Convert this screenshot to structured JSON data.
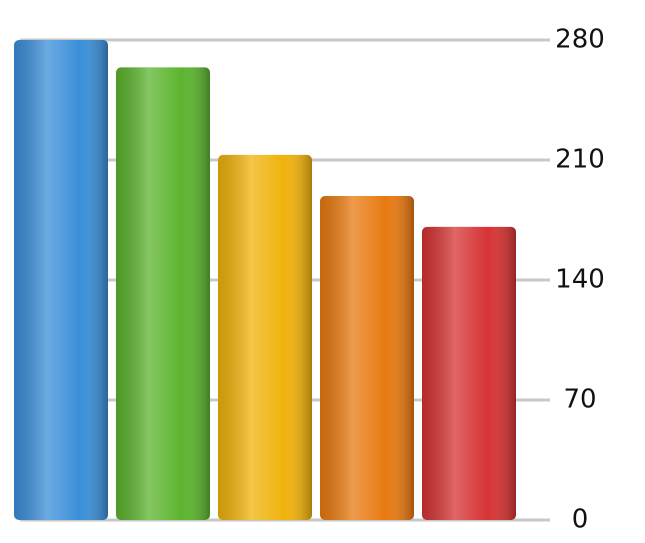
{
  "chart_data": {
    "type": "bar",
    "categories": [
      null,
      null,
      null,
      null,
      null
    ],
    "values": [
      280,
      264,
      213,
      189,
      171
    ],
    "colors": [
      "#3a8fd8",
      "#5cb42e",
      "#f0b30c",
      "#e87a10",
      "#d63333"
    ],
    "ylim": [
      0,
      280
    ],
    "yticks": [
      0,
      70,
      140,
      210,
      280
    ],
    "grid": true
  }
}
